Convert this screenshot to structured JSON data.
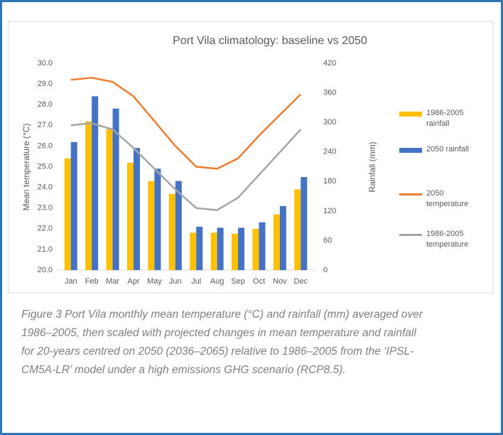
{
  "chart_data": {
    "type": "bar-line",
    "title": "Port Vila  climatology: baseline vs 2050",
    "y_label": "Mean temperature (°C)",
    "y2_label": "Rainfall (mm)",
    "categories": [
      "Jan",
      "Feb",
      "Mar",
      "Apr",
      "May",
      "Jun",
      "Jul",
      "Aug",
      "Sep",
      "Oct",
      "Nov",
      "Dec"
    ],
    "series": [
      {
        "name": "1986-2005 rainfall",
        "kind": "bar",
        "axis": "y2",
        "color": "#ffc000",
        "values": [
          227,
          302,
          286,
          218,
          181,
          155,
          76,
          76,
          74,
          84,
          113,
          164
        ]
      },
      {
        "name": "2050 rainfall",
        "kind": "bar",
        "axis": "y2",
        "color": "#4472c4",
        "values": [
          260,
          353,
          328,
          248,
          206,
          181,
          88,
          86,
          86,
          97,
          130,
          189
        ]
      },
      {
        "name": "2050 temperature",
        "kind": "line",
        "axis": "y",
        "color": "#ed7d31",
        "values": [
          29.2,
          29.3,
          29.1,
          28.4,
          27.2,
          26.0,
          25.0,
          24.9,
          25.4,
          26.5,
          27.5,
          28.5
        ]
      },
      {
        "name": "1986-2005 temperature",
        "kind": "line",
        "axis": "y",
        "color": "#a5a5a5",
        "values": [
          27.0,
          27.1,
          26.8,
          25.9,
          24.9,
          23.9,
          23.0,
          22.9,
          23.5,
          24.6,
          25.7,
          26.8
        ]
      }
    ],
    "ylim": [
      20,
      30
    ],
    "yticks": [
      {
        "value": 20,
        "label": "20.0"
      },
      {
        "value": 21,
        "label": "21.0"
      },
      {
        "value": 22,
        "label": "22.0"
      },
      {
        "value": 23,
        "label": "23.0"
      },
      {
        "value": 24,
        "label": "24.0"
      },
      {
        "value": 25,
        "label": "25.0"
      },
      {
        "value": 26,
        "label": "26.0"
      },
      {
        "value": 27,
        "label": "27.0"
      },
      {
        "value": 28,
        "label": "28.0"
      },
      {
        "value": 29,
        "label": "29.0"
      },
      {
        "value": 30,
        "label": "30.0"
      }
    ],
    "y2lim": [
      0,
      420
    ],
    "y2ticks": [
      0,
      60,
      120,
      180,
      240,
      300,
      360,
      420
    ],
    "grid": false,
    "legend": "right"
  },
  "caption": "Figure 3 Port Vila monthly mean temperature (°C) and rainfall (mm) averaged over 1986–2005, then scaled with projected changes in mean temperature and rainfall for 20-years centred on 2050 (2036–2065) relative to 1986–2005 from the ‘IPSL-CM5A-LR’ model under a high emissions GHG scenario (RCP8.5)."
}
